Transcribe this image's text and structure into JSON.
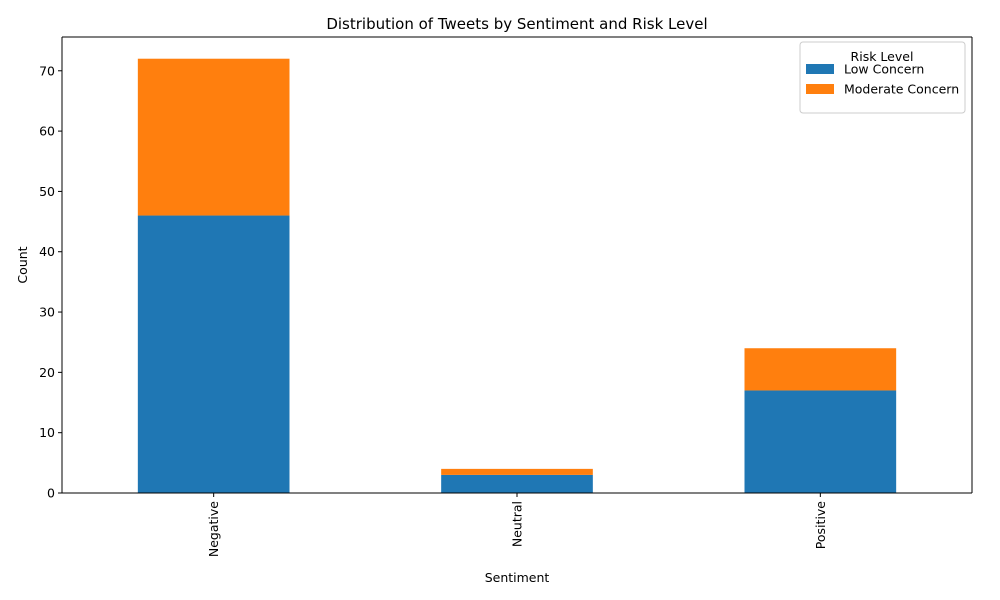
{
  "chart_data": {
    "type": "bar",
    "stacked": true,
    "title": "Distribution of Tweets by Sentiment and Risk Level",
    "xlabel": "Sentiment",
    "ylabel": "Count",
    "categories": [
      "Negative",
      "Neutral",
      "Positive"
    ],
    "series": [
      {
        "name": "Low Concern",
        "values": [
          46,
          3,
          17
        ],
        "color": "#1f77b4"
      },
      {
        "name": "Moderate Concern",
        "values": [
          26,
          1,
          7
        ],
        "color": "#ff7f0e"
      }
    ],
    "ylim": [
      0,
      75.6
    ],
    "yticks": [
      0,
      10,
      20,
      30,
      40,
      50,
      60,
      70
    ],
    "grid": false,
    "legend": {
      "title": "Risk Level",
      "placement": "top-right"
    }
  }
}
